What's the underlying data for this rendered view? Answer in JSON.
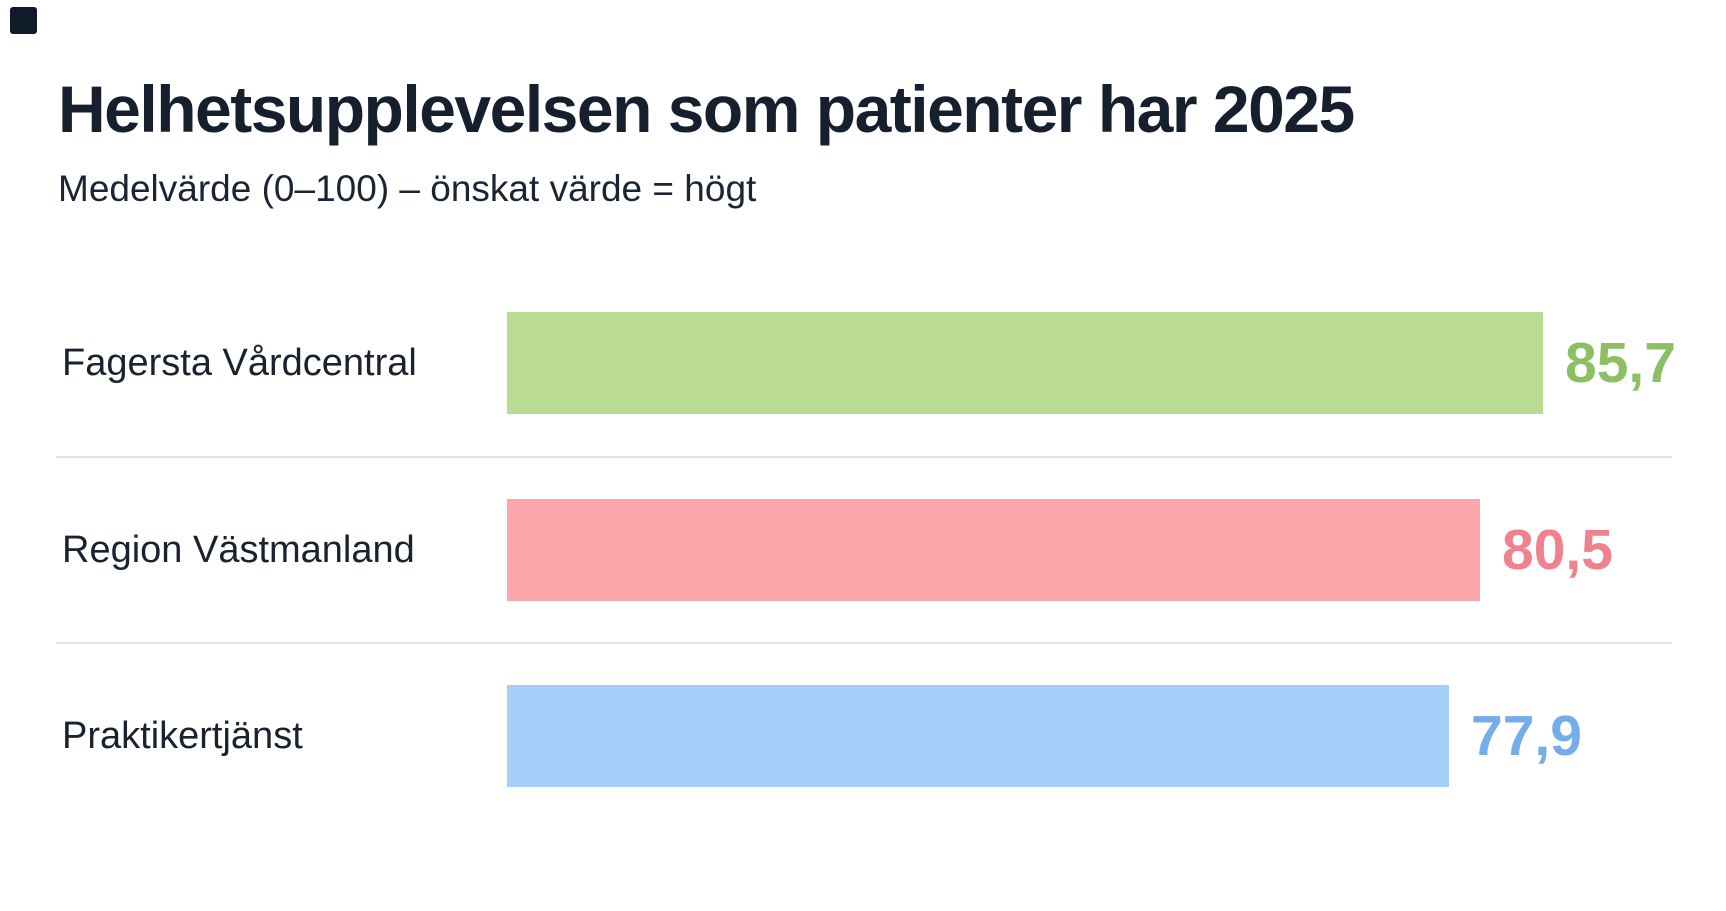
{
  "logo": {
    "shape": "dark-square-mark",
    "color": "#101b29"
  },
  "header": {
    "title": "Helhetsupplevelsen som patienter har 2025",
    "subtitle": "Medelvärde (0–100) – önskat värde = högt"
  },
  "chart_data": {
    "type": "bar",
    "orientation": "horizontal",
    "title": "Helhetsupplevelsen som patienter har 2025",
    "subtitle": "Medelvärde (0–100) – önskat värde = högt",
    "categories": [
      "Fagersta Vårdcentral",
      "Region Västmanland",
      "Praktikertjänst"
    ],
    "values": [
      85.7,
      80.5,
      77.9
    ],
    "value_labels": [
      "85,7",
      "80,5",
      "77,9"
    ],
    "value_label_position": "end-of-bar",
    "decimal_separator": ",",
    "xlim": [
      0,
      100
    ],
    "grid": false,
    "legend": false,
    "bar_colors": [
      "#b9db92",
      "#fba7ab",
      "#a5cef9"
    ],
    "value_colors": [
      "#8cc063",
      "#ef828c",
      "#74aeea"
    ],
    "separator_color": "#e3e3e3",
    "title_color": "#161f2d",
    "label_color": "#1a2230",
    "background_color": "#ffffff"
  }
}
